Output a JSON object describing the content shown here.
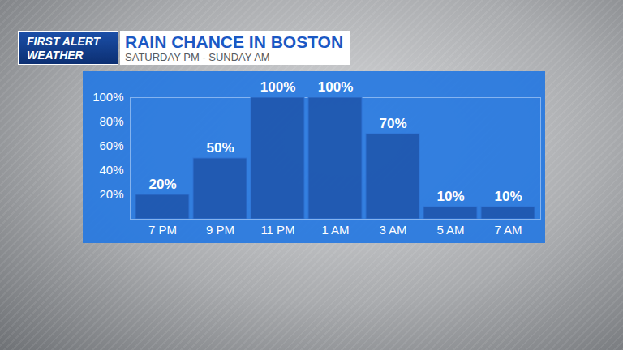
{
  "chart_data": {
    "type": "bar",
    "title": "RAIN CHANCE IN BOSTON",
    "subtitle": "SATURDAY PM - SUNDAY AM",
    "annotations": [
      "FIRST ALERT",
      "WEATHER"
    ],
    "categories": [
      "7 PM",
      "9 PM",
      "11 PM",
      "1 AM",
      "3 AM",
      "5 AM",
      "7 AM"
    ],
    "values": [
      20,
      50,
      100,
      100,
      70,
      10,
      10
    ],
    "value_labels": [
      "20%",
      "50%",
      "100%",
      "100%",
      "70%",
      "10%",
      "10%"
    ],
    "color": "#1f56ad",
    "ylim": [
      0,
      100
    ],
    "yticks": [
      {
        "value": 20,
        "label": "20%"
      },
      {
        "value": 40,
        "label": "40%"
      },
      {
        "value": 60,
        "label": "60%"
      },
      {
        "value": 80,
        "label": "80%"
      },
      {
        "value": 100,
        "label": "100%"
      }
    ],
    "grid": false,
    "data_labels": true
  }
}
